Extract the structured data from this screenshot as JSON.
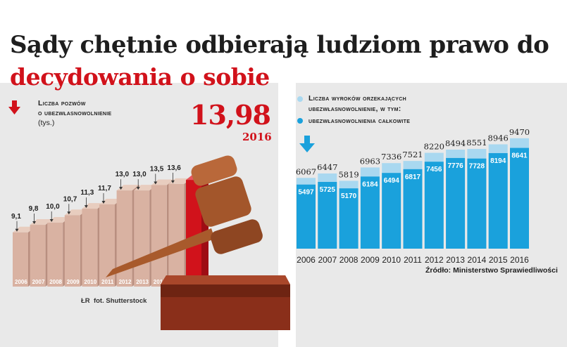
{
  "title": {
    "line1": "Sądy chętnie odbierają ludziom prawo do",
    "line2": "decydowania o sobie"
  },
  "left_chart": {
    "legend_line1": "Liczba pozwów",
    "legend_line2": "o ubezwłasnowolnienie",
    "unit": "(tys.)",
    "highlight_value": "13,98",
    "highlight_year": "2016",
    "photo_credit": "fot. Shutterstock",
    "photo_credit_mark": "ŁR"
  },
  "right_chart": {
    "legend_total": "Liczba wyroków orzekających ubezwłasnowolnienie, w tym:",
    "legend_total_line1": "Liczba wyroków orzekających",
    "legend_total_line2": "ubezwłasnowolnienie, w tym:",
    "legend_full": "ubezwłasnowolnienia całkowite",
    "source": "Źródło: Ministerstwo Sprawiedliwości"
  },
  "colors": {
    "red": "#d1121b",
    "bar_light": "#a9d8f0",
    "bar_dark": "#1aa1dc",
    "bar_brown": "#d9b2a2"
  },
  "chart_data": [
    {
      "type": "bar",
      "title": "Liczba pozwów o ubezwłasnowolnienie",
      "ylabel": "(tys.)",
      "categories": [
        "2006",
        "2007",
        "2008",
        "2009",
        "2010",
        "2011",
        "2012",
        "2013",
        "2014",
        "2015",
        "2016"
      ],
      "values": [
        9.1,
        9.8,
        10.0,
        10.7,
        11.3,
        11.7,
        13.0,
        13.0,
        13.5,
        13.6,
        13.98
      ],
      "labels": [
        "9,1",
        "9,8",
        "10,0",
        "10,7",
        "11,3",
        "11,7",
        "13,0",
        "13,0",
        "13,5",
        "13,6",
        "13,98"
      ],
      "ylim": [
        0,
        14.5
      ]
    },
    {
      "type": "bar",
      "categories": [
        "2006",
        "2007",
        "2008",
        "2009",
        "2010",
        "2011",
        "2012",
        "2013",
        "2014",
        "2015",
        "2016"
      ],
      "series": [
        {
          "name": "Liczba wyroków orzekających ubezwłasnowolnienie, w tym:",
          "values": [
            6067,
            6447,
            5819,
            6963,
            7336,
            7521,
            8220,
            8494,
            8551,
            8946,
            9470
          ]
        },
        {
          "name": "ubezwłasnowolnienia całkowite",
          "values": [
            5497,
            5725,
            5170,
            6184,
            6494,
            6817,
            7456,
            7776,
            7728,
            8194,
            8641
          ]
        }
      ],
      "ylim": [
        0,
        9500
      ]
    }
  ]
}
